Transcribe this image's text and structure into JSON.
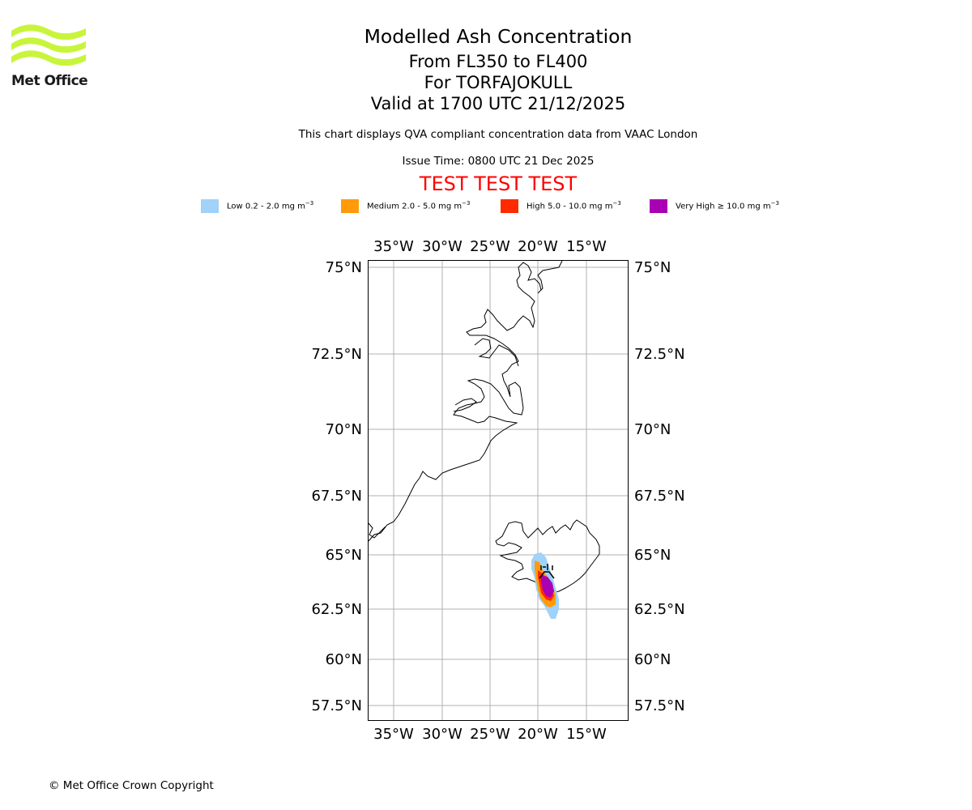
{
  "header": {
    "title": "Modelled Ash Concentration",
    "levels": "From FL350 to FL400",
    "volcano": "For TORFAJOKULL",
    "valid": "Valid at 1700 UTC 21/12/2025",
    "description": "This chart displays QVA compliant concentration data from VAAC London",
    "issue_time": "Issue Time: 0800 UTC 21 Dec 2025",
    "test_banner": "TEST TEST TEST"
  },
  "logo": {
    "text": "Met Office",
    "color": "#c8f53c"
  },
  "legend": [
    {
      "label": "Low 0.2 - 2.0 mg m",
      "sup": "−3",
      "color": "#a0d2fa"
    },
    {
      "label": "Medium 2.0 - 5.0 mg m",
      "sup": "−3",
      "color": "#ff9b0a"
    },
    {
      "label": "High 5.0 - 10.0 mg m",
      "sup": "−3",
      "color": "#ff2a00"
    },
    {
      "label": "Very High ≥ 10.0 mg m",
      "sup": "−3",
      "color": "#aa00b4"
    }
  ],
  "map": {
    "lon_ticks": [
      "35°W",
      "30°W",
      "25°W",
      "20°W",
      "15°W"
    ],
    "lon_values": [
      -35,
      -30,
      -25,
      -20,
      -15
    ],
    "lat_ticks": [
      "75°N",
      "72.5°N",
      "70°N",
      "67.5°N",
      "65°N",
      "62.5°N",
      "60°N",
      "57.5°N"
    ],
    "lat_values": [
      75,
      72.5,
      70,
      67.5,
      65,
      62.5,
      60,
      57.5
    ]
  },
  "footer": {
    "copyright": "© Met Office Crown Copyright"
  }
}
